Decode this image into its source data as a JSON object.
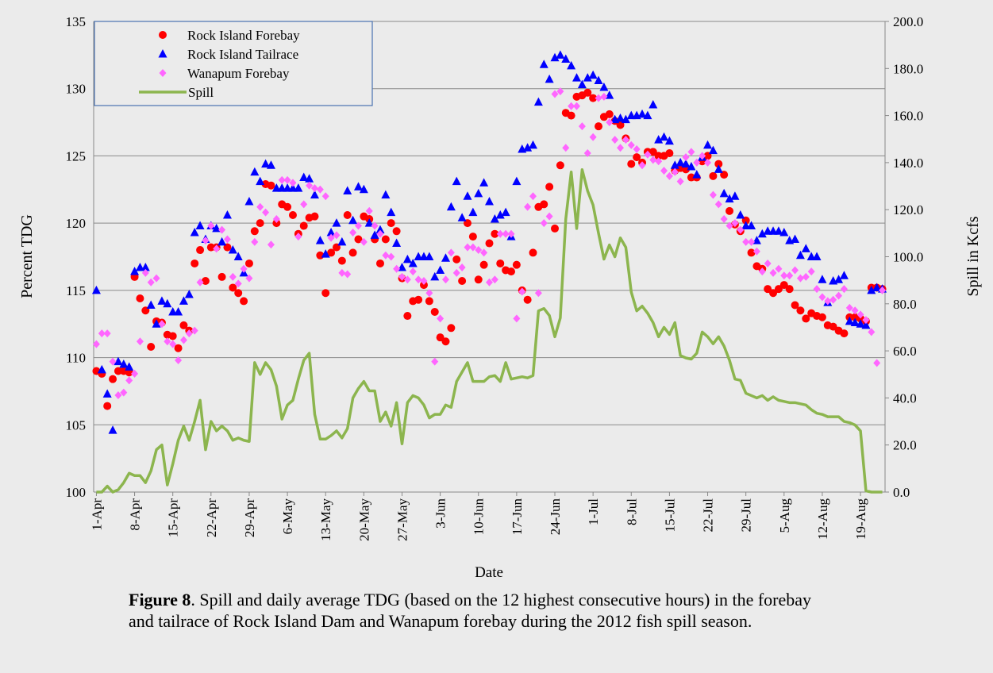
{
  "chart_data": {
    "type": "scatter",
    "y_label": "Percent TDG",
    "y2_label": "Spill in Kcfs",
    "x_label": "Date",
    "caption": {
      "label": "Figure 8",
      "text": ".  Spill and daily average TDG (based on the 12 highest  consecutive hours) in the forebay and tailrace of Rock Island Dam  and Wanapum forebay during the 2012 fish spill season."
    },
    "legend": "upper left",
    "grid": true,
    "ylim": [
      100,
      135
    ],
    "yticks": [
      100,
      105,
      110,
      115,
      120,
      125,
      130,
      135
    ],
    "y2lim": [
      0,
      200
    ],
    "y2ticks": [
      {
        "value": 0,
        "label": "0.0"
      },
      {
        "value": 20,
        "label": "20.0"
      },
      {
        "value": 40,
        "label": "40.0"
      },
      {
        "value": 60,
        "label": "60.0"
      },
      {
        "value": 80,
        "label": "80.0"
      },
      {
        "value": 100,
        "label": "100.0"
      },
      {
        "value": 120,
        "label": "120.0"
      },
      {
        "value": 140,
        "label": "140.0"
      },
      {
        "value": 160,
        "label": "160.0"
      },
      {
        "value": 180,
        "label": "180.0"
      },
      {
        "value": 200,
        "label": "200.0"
      }
    ],
    "categories": [
      "1-Apr",
      null,
      null,
      null,
      null,
      null,
      null,
      "8-Apr",
      null,
      null,
      null,
      null,
      null,
      null,
      "15-Apr",
      null,
      null,
      null,
      null,
      null,
      null,
      "22-Apr",
      null,
      null,
      null,
      null,
      null,
      null,
      "29-Apr",
      null,
      null,
      null,
      null,
      null,
      null,
      "6-May",
      null,
      null,
      null,
      null,
      null,
      null,
      "13-May",
      null,
      null,
      null,
      null,
      null,
      null,
      "20-May",
      null,
      null,
      null,
      null,
      null,
      null,
      "27-May",
      null,
      null,
      null,
      null,
      null,
      null,
      "3-Jun",
      null,
      null,
      null,
      null,
      null,
      null,
      "10-Jun",
      null,
      null,
      null,
      null,
      null,
      null,
      "17-Jun",
      null,
      null,
      null,
      null,
      null,
      null,
      "24-Jun",
      null,
      null,
      null,
      null,
      null,
      null,
      "1-Jul",
      null,
      null,
      null,
      null,
      null,
      null,
      "8-Jul",
      null,
      null,
      null,
      null,
      null,
      null,
      "15-Jul",
      null,
      null,
      null,
      null,
      null,
      null,
      "22-Jul",
      null,
      null,
      null,
      null,
      null,
      null,
      "29-Jul",
      null,
      null,
      null,
      null,
      null,
      null,
      "5-Aug",
      null,
      null,
      null,
      null,
      null,
      null,
      "12-Aug",
      null,
      null,
      null,
      null,
      null,
      null,
      "19-Aug",
      null,
      null,
      null,
      null
    ],
    "series": [
      {
        "name": "Rock Island Forebay",
        "color": "#ff0000",
        "marker": "circle",
        "values": [
          109,
          108.8,
          106.4,
          108.4,
          109,
          109,
          108.9,
          116,
          114.4,
          113.5,
          110.8,
          112.7,
          112.6,
          111.7,
          111.6,
          110.7,
          112.4,
          112,
          117,
          118,
          115.7,
          118.2,
          118.2,
          116,
          118.2,
          115.2,
          114.8,
          114.2,
          117,
          119.4,
          120,
          122.9,
          122.8,
          120,
          121.4,
          121.2,
          120.6,
          119.2,
          119.8,
          120.4,
          120.5,
          117.6,
          114.8,
          117.8,
          118.2,
          117.2,
          120.6,
          117.8,
          118.8,
          120.5,
          120.3,
          118.8,
          117,
          118.8,
          120,
          119.4,
          115.9,
          113.1,
          114.2,
          114.3,
          115.4,
          114.2,
          113.4,
          111.5,
          111.2,
          112.2,
          117.3,
          115.7,
          120,
          119,
          115.8,
          116.9,
          118.5,
          119.2,
          117,
          116.5,
          116.4,
          116.9,
          115,
          114.3,
          117.8,
          121.2,
          121.4,
          122.7,
          119.6,
          124.3,
          128.2,
          128,
          129.4,
          129.5,
          129.7,
          129.3,
          127.2,
          127.9,
          128.1,
          127.6,
          127.3,
          126.3,
          124.4,
          124.9,
          124.5,
          125.3,
          125.3,
          125,
          125,
          125.2,
          123.9,
          124.1,
          124,
          123.4,
          123.4,
          124.6,
          125,
          123.5,
          124.4,
          123.6,
          120.9,
          119.9,
          119.4,
          120.2,
          117.8,
          116.8,
          116.6,
          115.1,
          114.8,
          115.1,
          115.4,
          115.1,
          113.9,
          113.5,
          112.9,
          113.3,
          113.1,
          113,
          112.4,
          112.3,
          112,
          111.8,
          113,
          113,
          112.9,
          112.7,
          115.2,
          115.2,
          115.1
        ]
      },
      {
        "name": "Rock Island Tailrace",
        "color": "#0000ff",
        "marker": "triangle",
        "values": [
          115,
          109.1,
          107.3,
          104.6,
          109.7,
          109.5,
          109.3,
          116.4,
          116.7,
          116.7,
          113.9,
          112.5,
          114.2,
          114,
          113.4,
          113.4,
          114.2,
          114.7,
          119.3,
          119.8,
          118.8,
          119.8,
          119.6,
          118.6,
          120.6,
          118,
          117.5,
          116.3,
          121.6,
          123.8,
          123.1,
          124.4,
          124.3,
          122.6,
          122.6,
          122.6,
          122.6,
          122.6,
          123.4,
          123.3,
          122.1,
          118.7,
          117.7,
          119.3,
          120,
          118.6,
          122.4,
          120.2,
          122.7,
          122.5,
          120,
          119.1,
          119.5,
          122.1,
          120.8,
          118.5,
          116.7,
          117.3,
          117,
          117.5,
          117.5,
          117.5,
          116,
          116.5,
          117.4,
          121.2,
          123.1,
          120.4,
          122,
          120.8,
          122.2,
          123,
          121.6,
          120.3,
          120.6,
          120.8,
          119,
          123.1,
          125.5,
          125.6,
          125.8,
          129,
          131.8,
          130.7,
          132.3,
          132.5,
          132.2,
          131.7,
          130.8,
          130.3,
          130.8,
          131,
          130.6,
          130.1,
          129.5,
          127.7,
          127.8,
          127.7,
          128,
          128,
          128.1,
          128,
          128.8,
          126.2,
          126.4,
          126.1,
          124.3,
          124.5,
          124.4,
          124.2,
          123.6,
          124.9,
          125.8,
          125.4,
          124,
          122.2,
          121.8,
          122,
          120.6,
          119.8,
          119.8,
          118.7,
          119.2,
          119.4,
          119.4,
          119.4,
          119.3,
          118.7,
          118.8,
          117.6,
          118.1,
          117.5,
          117.5,
          115.8,
          114.1,
          115.7,
          115.8,
          116.1,
          112.7,
          112.6,
          112.5,
          112.4,
          115,
          115.2,
          115.1
        ]
      },
      {
        "name": "Wanapum Forebay",
        "color": "#ff66ff",
        "marker": "diamond",
        "values": [
          111,
          111.8,
          111.8,
          109.7,
          107.2,
          107.4,
          108.3,
          108.8,
          111.2,
          116.3,
          115.6,
          115.9,
          112.5,
          111.2,
          111,
          109.8,
          111.3,
          111.8,
          112,
          115.6,
          118.7,
          119.8,
          118.1,
          119.5,
          118.8,
          116,
          115.5,
          116.6,
          115.9,
          118.6,
          121.2,
          120.8,
          118.4,
          120.3,
          123.2,
          123.2,
          123,
          119,
          121.4,
          122.8,
          122.6,
          122.5,
          122,
          118.9,
          119.1,
          116.3,
          116.2,
          119.3,
          119.8,
          118.6,
          120.9,
          119.8,
          119.2,
          117.6,
          117.5,
          116.6,
          116,
          115.8,
          116.4,
          115.8,
          115.7,
          114.8,
          109.7,
          112.9,
          115.8,
          117.8,
          116.3,
          116.7,
          118.2,
          118.2,
          118,
          117.8,
          115.6,
          115.8,
          119.2,
          119.2,
          119.2,
          112.9,
          114.9,
          121.2,
          122,
          114.8,
          120,
          120.5,
          129.6,
          129.8,
          125.6,
          128.7,
          128.7,
          127.2,
          125.2,
          126.4,
          129.3,
          129.4,
          127.5,
          126.2,
          125.6,
          126.2,
          125.8,
          125.5,
          124.3,
          125.1,
          124.7,
          124.6,
          123.9,
          123.5,
          123.8,
          123.1,
          124.9,
          125.3,
          124.5,
          125,
          124.5,
          122.1,
          121.4,
          120.3,
          119.8,
          120,
          119.5,
          118.6,
          118.6,
          117.9,
          116.4,
          117,
          116.3,
          116.6,
          116.1,
          116.1,
          116.5,
          115.9,
          116,
          116.4,
          115.1,
          114.5,
          114.2,
          114.3,
          114.6,
          115.1,
          113.7,
          113.5,
          113.2,
          112.8,
          111.9,
          109.6,
          115
        ]
      },
      {
        "name": "Spill",
        "color": "#8cb54e",
        "marker": "line",
        "axis": "y2",
        "values": [
          0,
          0,
          2.5,
          0,
          1,
          4,
          8,
          7,
          7,
          4,
          9,
          18,
          20,
          3,
          12,
          22,
          28,
          22,
          30,
          39,
          18,
          30,
          26,
          28,
          26,
          22,
          23,
          22,
          21.5,
          55,
          50,
          55,
          52,
          45,
          31,
          37,
          39,
          48,
          56,
          59,
          33,
          22.5,
          22.5,
          24,
          26,
          23,
          27,
          40,
          44,
          47,
          43,
          43,
          30,
          34,
          28,
          38,
          20.5,
          38,
          41,
          40,
          37,
          31.5,
          33,
          33,
          37,
          36,
          47,
          51,
          55,
          47,
          47,
          47,
          49,
          49.5,
          47,
          55,
          48,
          48.5,
          49,
          48.5,
          49.5,
          77,
          78,
          75,
          66,
          74,
          116,
          136,
          112,
          137,
          128,
          122,
          110,
          99,
          105,
          100,
          108,
          104,
          85,
          77,
          79,
          76,
          72,
          66,
          70,
          67,
          72,
          58,
          57,
          56.5,
          59,
          68,
          66,
          63,
          66,
          62,
          56,
          48,
          47.5,
          42,
          41,
          40,
          41,
          39,
          40.5,
          39,
          38.5,
          38,
          38,
          37.5,
          37,
          35,
          33.5,
          33,
          32,
          32,
          32,
          30,
          29.5,
          28.5,
          26,
          0.5,
          0,
          0,
          0
        ]
      }
    ]
  }
}
